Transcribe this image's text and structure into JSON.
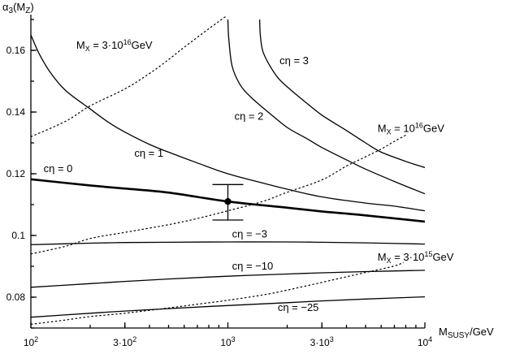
{
  "chart_data": {
    "type": "line",
    "title": "",
    "xlabel_main": "M",
    "xlabel_sub": "SUSY",
    "xlabel_tail": "/GeV",
    "ylabel_main": "α",
    "ylabel_sub": "3",
    "ylabel_tail": "(M",
    "ylabel_sub2": "Z",
    "ylabel_close": ")",
    "x_scale": "log",
    "xlim": [
      100,
      10000
    ],
    "ylim": [
      0.07,
      0.17
    ],
    "grid": false,
    "x_ticks": [
      {
        "value": 100,
        "base": "10",
        "exp": "2"
      },
      {
        "value": 300,
        "base": "3·10",
        "exp": "2"
      },
      {
        "value": 1000,
        "base": "10",
        "exp": "3"
      },
      {
        "value": 3000,
        "base": "3·10",
        "exp": "3"
      },
      {
        "value": 10000,
        "base": "10",
        "exp": "4"
      }
    ],
    "y_ticks": [
      {
        "value": 0.08,
        "label": "0.08"
      },
      {
        "value": 0.1,
        "label": "0.1"
      },
      {
        "value": 0.12,
        "label": "0.12"
      },
      {
        "value": 0.14,
        "label": "0.14"
      },
      {
        "value": 0.16,
        "label": "0.16"
      }
    ],
    "series": [
      {
        "name": "cη = 3",
        "style": "solid",
        "label_at": [
          1830,
          0.1555
        ],
        "x": [
          1450,
          1460,
          1500,
          1600,
          1800,
          2100,
          2500,
          3000,
          4000,
          5000,
          6000,
          8000,
          10000
        ],
        "y": [
          0.17,
          0.165,
          0.16,
          0.156,
          0.151,
          0.147,
          0.143,
          0.139,
          0.134,
          0.13,
          0.127,
          0.124,
          0.122
        ]
      },
      {
        "name": "cη = 2",
        "style": "solid",
        "label_at": [
          1080,
          0.1375
        ],
        "x": [
          1000,
          1010,
          1050,
          1150,
          1300,
          1600,
          2000,
          2500,
          3000,
          4000,
          5000,
          7000,
          10000
        ],
        "y": [
          0.17,
          0.164,
          0.155,
          0.149,
          0.145,
          0.14,
          0.135,
          0.1315,
          0.1285,
          0.1245,
          0.1215,
          0.1175,
          0.1135
        ]
      },
      {
        "name": "cη = 1",
        "style": "solid",
        "label_at": [
          335,
          0.1255
        ],
        "x": [
          100,
          110,
          125,
          150,
          200,
          250,
          300,
          400,
          500,
          700,
          1000,
          1500,
          2000,
          3000,
          5000,
          7000,
          10000
        ],
        "y": [
          0.165,
          0.159,
          0.153,
          0.147,
          0.141,
          0.1365,
          0.1335,
          0.1295,
          0.127,
          0.1235,
          0.12,
          0.117,
          0.115,
          0.1125,
          0.1105,
          0.1095,
          0.108
        ]
      },
      {
        "name": "cη = 0",
        "style": "bold",
        "label_at": [
          116,
          0.1205
        ],
        "x": [
          100,
          200,
          300,
          500,
          1000,
          2000,
          3000,
          5000,
          10000
        ],
        "y": [
          0.1182,
          0.1162,
          0.1152,
          0.1139,
          0.111,
          0.109,
          0.1078,
          0.1065,
          0.1045
        ]
      },
      {
        "name": "cη = −3",
        "style": "solid",
        "label_at": [
          1050,
          0.0994
        ],
        "x": [
          100,
          200,
          300,
          500,
          1000,
          2000,
          3000,
          5000,
          10000
        ],
        "y": [
          0.097,
          0.0975,
          0.0977,
          0.0978,
          0.0979,
          0.0979,
          0.0978,
          0.0976,
          0.0972
        ]
      },
      {
        "name": "cη = −10",
        "style": "solid",
        "label_at": [
          1050,
          0.0889
        ],
        "x": [
          100,
          200,
          300,
          500,
          1000,
          2000,
          3000,
          5000,
          10000
        ],
        "y": [
          0.0832,
          0.0844,
          0.0851,
          0.0859,
          0.0868,
          0.0875,
          0.0879,
          0.0883,
          0.0887
        ]
      },
      {
        "name": "cη = −25",
        "style": "solid",
        "label_at": [
          1790,
          0.0755
        ],
        "x": [
          100,
          200,
          300,
          500,
          1000,
          2000,
          3000,
          5000,
          10000
        ],
        "y": [
          0.0735,
          0.0748,
          0.0755,
          0.0763,
          0.0773,
          0.0782,
          0.0788,
          0.0794,
          0.0801
        ]
      },
      {
        "name": "M",
        "label_parts": [
          "M",
          "X",
          " = 3·10",
          "16",
          "GeV"
        ],
        "style": "dotted",
        "label_at": [
          170,
          0.1605
        ],
        "x": [
          100,
          150,
          200,
          300,
          400,
          500,
          600,
          800,
          1000
        ],
        "y": [
          0.132,
          0.137,
          0.142,
          0.1475,
          0.1525,
          0.157,
          0.161,
          0.167,
          0.1715
        ]
      },
      {
        "name": "M",
        "label_parts": [
          "M",
          "X",
          " = 10",
          "16",
          "GeV"
        ],
        "style": "dotted",
        "label_at": [
          5750,
          0.1335
        ],
        "x": [
          100,
          150,
          200,
          300,
          500,
          700,
          1000,
          1500,
          2000,
          3000,
          4000,
          5000,
          6000,
          7000,
          8000
        ],
        "y": [
          0.094,
          0.0965,
          0.099,
          0.101,
          0.1035,
          0.1055,
          0.108,
          0.111,
          0.114,
          0.118,
          0.1225,
          0.1255,
          0.128,
          0.1305,
          0.1325
        ]
      },
      {
        "name": "M",
        "label_parts": [
          "M",
          "X",
          " = 3·10",
          "15",
          "GeV"
        ],
        "style": "dotted",
        "label_at": [
          5750,
          0.0919
        ],
        "x": [
          100,
          150,
          200,
          300,
          500,
          700,
          1000,
          1500,
          2000,
          3000,
          4000,
          5000,
          6000,
          7000,
          7800
        ],
        "y": [
          0.0712,
          0.0726,
          0.0737,
          0.0748,
          0.0765,
          0.0777,
          0.079,
          0.0807,
          0.0823,
          0.0848,
          0.0866,
          0.088,
          0.0891,
          0.0901,
          0.0912
        ]
      }
    ],
    "error_bar": {
      "x": 1000,
      "y": 0.111,
      "ymin": 0.105,
      "ymax": 0.1165
    }
  }
}
